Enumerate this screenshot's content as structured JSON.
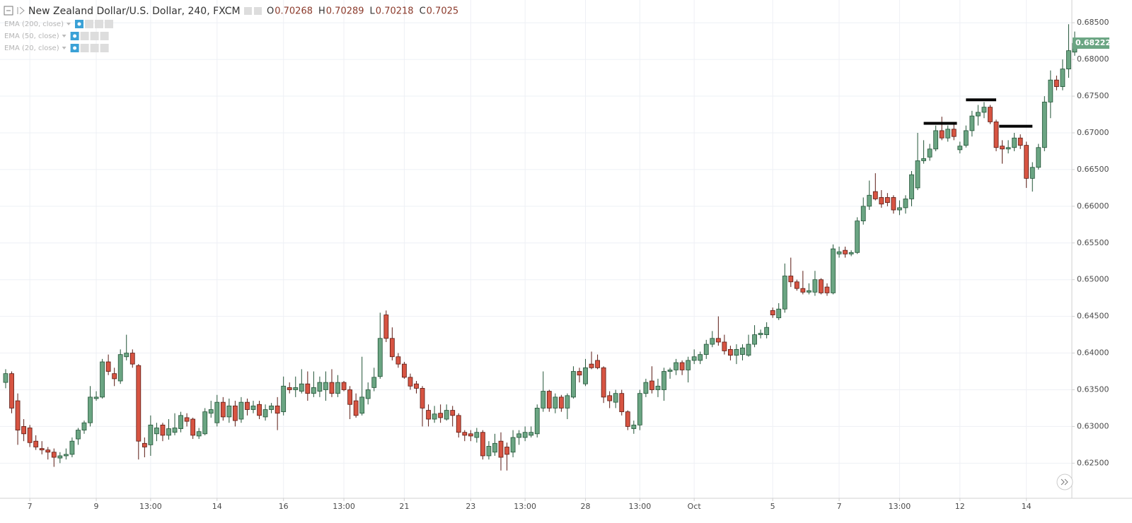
{
  "chart_data": {
    "type": "candlestick",
    "title": "New Zealand Dollar/U.S. Dollar, 240, FXCM",
    "legend_ohlc": [
      {
        "label": "O",
        "value": 0.70268
      },
      {
        "label": "H",
        "value": 0.70289
      },
      {
        "label": "L",
        "value": 0.70218
      },
      {
        "label": "C",
        "value": 0.7025
      }
    ],
    "indicators": [
      "EMA (200, close)",
      "EMA (50, close)",
      "EMA (20, close)"
    ],
    "up_color": "#6ba583",
    "down_color": "#d75442",
    "last_price": 0.68222,
    "ylim": [
      0.6207,
      0.6881
    ],
    "yticks": [
      {
        "value": 0.685,
        "label": "0.68500"
      },
      {
        "value": 0.68,
        "label": "0.68000"
      },
      {
        "value": 0.675,
        "label": "0.67500"
      },
      {
        "value": 0.67,
        "label": "0.67000"
      },
      {
        "value": 0.665,
        "label": "0.66500"
      },
      {
        "value": 0.66,
        "label": "0.66000"
      },
      {
        "value": 0.655,
        "label": "0.65500"
      },
      {
        "value": 0.65,
        "label": "0.65000"
      },
      {
        "value": 0.645,
        "label": "0.64500"
      },
      {
        "value": 0.64,
        "label": "0.64000"
      },
      {
        "value": 0.635,
        "label": "0.63500"
      },
      {
        "value": 0.63,
        "label": "0.63000"
      },
      {
        "value": 0.625,
        "label": "0.62500"
      }
    ],
    "xticks": [
      {
        "value": 4,
        "label": "7"
      },
      {
        "value": 15,
        "label": "9"
      },
      {
        "value": 24,
        "label": "13:00"
      },
      {
        "value": 35,
        "label": "14"
      },
      {
        "value": 46,
        "label": "16"
      },
      {
        "value": 56,
        "label": "13:00"
      },
      {
        "value": 66,
        "label": "21"
      },
      {
        "value": 77,
        "label": "23"
      },
      {
        "value": 86,
        "label": "13:00"
      },
      {
        "value": 96,
        "label": "28"
      },
      {
        "value": 105,
        "label": "13:00"
      },
      {
        "value": 114,
        "label": "Oct"
      },
      {
        "value": 127,
        "label": "5"
      },
      {
        "value": 138,
        "label": "7"
      },
      {
        "value": 148,
        "label": "13:00"
      },
      {
        "value": 158,
        "label": "12"
      },
      {
        "value": 169,
        "label": "14"
      }
    ],
    "grid": true,
    "levels": [
      {
        "value": 0.6713,
        "from": 152,
        "to": 157.5
      },
      {
        "value": 0.6745,
        "from": 159,
        "to": 164
      },
      {
        "value": 0.6709,
        "from": 164.5,
        "to": 170
      }
    ],
    "ohlc": [
      [
        0.636,
        0.6378,
        0.6352,
        0.6372
      ],
      [
        0.6372,
        0.6375,
        0.6318,
        0.6325
      ],
      [
        0.6335,
        0.6345,
        0.6275,
        0.6295
      ],
      [
        0.63,
        0.631,
        0.628,
        0.629
      ],
      [
        0.6298,
        0.6302,
        0.6272,
        0.6278
      ],
      [
        0.628,
        0.6288,
        0.6268,
        0.6272
      ],
      [
        0.627,
        0.628,
        0.6262,
        0.6268
      ],
      [
        0.6268,
        0.6272,
        0.6255,
        0.6265
      ],
      [
        0.6265,
        0.627,
        0.6245,
        0.6258
      ],
      [
        0.6257,
        0.6265,
        0.625,
        0.626
      ],
      [
        0.626,
        0.627,
        0.6255,
        0.6262
      ],
      [
        0.6262,
        0.6285,
        0.6258,
        0.628
      ],
      [
        0.6283,
        0.6298,
        0.6275,
        0.6295
      ],
      [
        0.6295,
        0.6308,
        0.629,
        0.6305
      ],
      [
        0.6305,
        0.6355,
        0.63,
        0.634
      ],
      [
        0.6338,
        0.6348,
        0.6335,
        0.634
      ],
      [
        0.634,
        0.6392,
        0.6338,
        0.6388
      ],
      [
        0.6388,
        0.6398,
        0.637,
        0.6375
      ],
      [
        0.6372,
        0.638,
        0.6355,
        0.6365
      ],
      [
        0.6362,
        0.6405,
        0.6358,
        0.6398
      ],
      [
        0.6395,
        0.6425,
        0.639,
        0.64
      ],
      [
        0.64,
        0.6405,
        0.638,
        0.6385
      ],
      [
        0.6383,
        0.6385,
        0.6255,
        0.628
      ],
      [
        0.6277,
        0.6285,
        0.6258,
        0.6272
      ],
      [
        0.6275,
        0.6315,
        0.626,
        0.6302
      ],
      [
        0.629,
        0.6305,
        0.628,
        0.6298
      ],
      [
        0.6302,
        0.6305,
        0.628,
        0.6288
      ],
      [
        0.6288,
        0.631,
        0.6282,
        0.6297
      ],
      [
        0.6292,
        0.6318,
        0.6288,
        0.6298
      ],
      [
        0.6297,
        0.632,
        0.6292,
        0.6315
      ],
      [
        0.6312,
        0.6318,
        0.63,
        0.6307
      ],
      [
        0.631,
        0.6312,
        0.6283,
        0.6288
      ],
      [
        0.6287,
        0.6298,
        0.6283,
        0.6293
      ],
      [
        0.629,
        0.6325,
        0.6288,
        0.632
      ],
      [
        0.6318,
        0.6335,
        0.6312,
        0.6323
      ],
      [
        0.6305,
        0.6343,
        0.63,
        0.6333
      ],
      [
        0.6333,
        0.634,
        0.6308,
        0.6313
      ],
      [
        0.6313,
        0.6338,
        0.6305,
        0.6328
      ],
      [
        0.6328,
        0.6335,
        0.63,
        0.6308
      ],
      [
        0.631,
        0.634,
        0.6305,
        0.6333
      ],
      [
        0.6333,
        0.6338,
        0.6315,
        0.6323
      ],
      [
        0.6323,
        0.6335,
        0.6318,
        0.6328
      ],
      [
        0.633,
        0.6335,
        0.631,
        0.6315
      ],
      [
        0.6313,
        0.633,
        0.6308,
        0.6323
      ],
      [
        0.6323,
        0.6332,
        0.6318,
        0.6328
      ],
      [
        0.6328,
        0.634,
        0.6295,
        0.6318
      ],
      [
        0.632,
        0.6368,
        0.6315,
        0.6355
      ],
      [
        0.6353,
        0.636,
        0.6345,
        0.635
      ],
      [
        0.635,
        0.6368,
        0.634,
        0.6353
      ],
      [
        0.6348,
        0.6378,
        0.6345,
        0.6358
      ],
      [
        0.6358,
        0.6375,
        0.6335,
        0.6345
      ],
      [
        0.6345,
        0.6375,
        0.634,
        0.6353
      ],
      [
        0.6348,
        0.6368,
        0.634,
        0.636
      ],
      [
        0.635,
        0.6375,
        0.6335,
        0.636
      ],
      [
        0.636,
        0.6378,
        0.634,
        0.6345
      ],
      [
        0.6345,
        0.637,
        0.634,
        0.636
      ],
      [
        0.636,
        0.6362,
        0.6348,
        0.635
      ],
      [
        0.635,
        0.6355,
        0.631,
        0.633
      ],
      [
        0.6335,
        0.6345,
        0.6312,
        0.6315
      ],
      [
        0.6318,
        0.6395,
        0.6315,
        0.634
      ],
      [
        0.6338,
        0.636,
        0.633,
        0.635
      ],
      [
        0.6353,
        0.638,
        0.6348,
        0.6367
      ],
      [
        0.6368,
        0.6455,
        0.6365,
        0.642
      ],
      [
        0.6452,
        0.6458,
        0.6415,
        0.642
      ],
      [
        0.642,
        0.6435,
        0.639,
        0.6395
      ],
      [
        0.6395,
        0.64,
        0.638,
        0.6385
      ],
      [
        0.6385,
        0.6388,
        0.6365,
        0.6367
      ],
      [
        0.6367,
        0.6372,
        0.635,
        0.6355
      ],
      [
        0.6358,
        0.6362,
        0.6345,
        0.6352
      ],
      [
        0.6352,
        0.6355,
        0.63,
        0.6325
      ],
      [
        0.6322,
        0.633,
        0.63,
        0.631
      ],
      [
        0.631,
        0.6328,
        0.6305,
        0.6317
      ],
      [
        0.6318,
        0.633,
        0.6305,
        0.6312
      ],
      [
        0.631,
        0.633,
        0.6308,
        0.6322
      ],
      [
        0.6322,
        0.6328,
        0.63,
        0.6315
      ],
      [
        0.6315,
        0.6318,
        0.6285,
        0.6292
      ],
      [
        0.6292,
        0.6295,
        0.628,
        0.6288
      ],
      [
        0.629,
        0.6295,
        0.628,
        0.6287
      ],
      [
        0.6285,
        0.6298,
        0.6278,
        0.6292
      ],
      [
        0.6292,
        0.6295,
        0.6255,
        0.626
      ],
      [
        0.626,
        0.628,
        0.6255,
        0.6273
      ],
      [
        0.6265,
        0.629,
        0.626,
        0.6277
      ],
      [
        0.628,
        0.6292,
        0.624,
        0.6258
      ],
      [
        0.6272,
        0.6278,
        0.624,
        0.6262
      ],
      [
        0.6265,
        0.6295,
        0.6258,
        0.6285
      ],
      [
        0.6285,
        0.6295,
        0.6275,
        0.629
      ],
      [
        0.6285,
        0.63,
        0.628,
        0.6292
      ],
      [
        0.6288,
        0.63,
        0.6285,
        0.6292
      ],
      [
        0.629,
        0.633,
        0.6285,
        0.6325
      ],
      [
        0.6325,
        0.6375,
        0.632,
        0.6348
      ],
      [
        0.6348,
        0.635,
        0.632,
        0.6325
      ],
      [
        0.6325,
        0.6345,
        0.6318,
        0.634
      ],
      [
        0.634,
        0.6343,
        0.632,
        0.6325
      ],
      [
        0.6325,
        0.6345,
        0.631,
        0.6342
      ],
      [
        0.634,
        0.6382,
        0.6338,
        0.6375
      ],
      [
        0.6375,
        0.638,
        0.636,
        0.637
      ],
      [
        0.6358,
        0.6392,
        0.6355,
        0.638
      ],
      [
        0.6385,
        0.6402,
        0.6378,
        0.638
      ],
      [
        0.639,
        0.6398,
        0.6378,
        0.638
      ],
      [
        0.638,
        0.6382,
        0.6332,
        0.634
      ],
      [
        0.6342,
        0.6348,
        0.6325,
        0.6335
      ],
      [
        0.6333,
        0.635,
        0.6325,
        0.6345
      ],
      [
        0.6345,
        0.635,
        0.6315,
        0.632
      ],
      [
        0.632,
        0.6322,
        0.6295,
        0.63
      ],
      [
        0.6297,
        0.6308,
        0.629,
        0.6302
      ],
      [
        0.6302,
        0.635,
        0.6295,
        0.6345
      ],
      [
        0.6345,
        0.6365,
        0.634,
        0.636
      ],
      [
        0.6362,
        0.6382,
        0.6345,
        0.635
      ],
      [
        0.635,
        0.6365,
        0.634,
        0.6355
      ],
      [
        0.635,
        0.638,
        0.6335,
        0.6375
      ],
      [
        0.6375,
        0.638,
        0.6365,
        0.6377
      ],
      [
        0.6377,
        0.6392,
        0.637,
        0.6387
      ],
      [
        0.6387,
        0.639,
        0.637,
        0.6377
      ],
      [
        0.6377,
        0.6395,
        0.636,
        0.639
      ],
      [
        0.639,
        0.6405,
        0.6385,
        0.6395
      ],
      [
        0.639,
        0.6402,
        0.6385,
        0.6398
      ],
      [
        0.6398,
        0.6418,
        0.6392,
        0.6412
      ],
      [
        0.6412,
        0.643,
        0.6408,
        0.642
      ],
      [
        0.642,
        0.645,
        0.641,
        0.6415
      ],
      [
        0.6415,
        0.6425,
        0.6398,
        0.6403
      ],
      [
        0.6405,
        0.641,
        0.639,
        0.6397
      ],
      [
        0.6397,
        0.6412,
        0.6385,
        0.6405
      ],
      [
        0.6398,
        0.6412,
        0.639,
        0.6407
      ],
      [
        0.6397,
        0.6425,
        0.6395,
        0.6412
      ],
      [
        0.6412,
        0.6438,
        0.6408,
        0.6425
      ],
      [
        0.6425,
        0.6432,
        0.642,
        0.6427
      ],
      [
        0.6425,
        0.6442,
        0.642,
        0.6435
      ],
      [
        0.6458,
        0.6462,
        0.6448,
        0.6452
      ],
      [
        0.6448,
        0.6468,
        0.6445,
        0.646
      ],
      [
        0.646,
        0.6522,
        0.6455,
        0.6505
      ],
      [
        0.6505,
        0.653,
        0.649,
        0.6497
      ],
      [
        0.6497,
        0.65,
        0.6485,
        0.6488
      ],
      [
        0.6488,
        0.6512,
        0.648,
        0.6483
      ],
      [
        0.6483,
        0.6495,
        0.648,
        0.6485
      ],
      [
        0.6483,
        0.6512,
        0.6478,
        0.65
      ],
      [
        0.65,
        0.6502,
        0.648,
        0.6482
      ],
      [
        0.649,
        0.6495,
        0.6478,
        0.6482
      ],
      [
        0.6482,
        0.6548,
        0.648,
        0.6542
      ],
      [
        0.6535,
        0.6545,
        0.653,
        0.6538
      ],
      [
        0.654,
        0.6545,
        0.653,
        0.6535
      ],
      [
        0.6535,
        0.654,
        0.6532,
        0.6537
      ],
      [
        0.6537,
        0.6585,
        0.6535,
        0.658
      ],
      [
        0.658,
        0.6612,
        0.6575,
        0.66
      ],
      [
        0.66,
        0.6635,
        0.6595,
        0.6615
      ],
      [
        0.662,
        0.6645,
        0.6608,
        0.661
      ],
      [
        0.6612,
        0.6622,
        0.6598,
        0.6603
      ],
      [
        0.6612,
        0.6618,
        0.66,
        0.6605
      ],
      [
        0.6612,
        0.6615,
        0.659,
        0.6595
      ],
      [
        0.6595,
        0.6608,
        0.6588,
        0.6598
      ],
      [
        0.6598,
        0.6615,
        0.659,
        0.661
      ],
      [
        0.661,
        0.6648,
        0.66,
        0.6643
      ],
      [
        0.6625,
        0.67,
        0.6622,
        0.6662
      ],
      [
        0.6662,
        0.669,
        0.6658,
        0.6665
      ],
      [
        0.6667,
        0.6685,
        0.6662,
        0.6678
      ],
      [
        0.6678,
        0.671,
        0.6675,
        0.6703
      ],
      [
        0.6703,
        0.6722,
        0.669,
        0.6693
      ],
      [
        0.6693,
        0.671,
        0.6688,
        0.6705
      ],
      [
        0.6705,
        0.6712,
        0.669,
        0.6695
      ],
      [
        0.6677,
        0.6688,
        0.6672,
        0.6682
      ],
      [
        0.6683,
        0.671,
        0.668,
        0.6703
      ],
      [
        0.6703,
        0.673,
        0.6695,
        0.6723
      ],
      [
        0.6723,
        0.6738,
        0.671,
        0.6728
      ],
      [
        0.6728,
        0.6742,
        0.672,
        0.6735
      ],
      [
        0.6735,
        0.6738,
        0.6712,
        0.6715
      ],
      [
        0.6715,
        0.6718,
        0.6675,
        0.668
      ],
      [
        0.6682,
        0.669,
        0.6658,
        0.6678
      ],
      [
        0.6678,
        0.669,
        0.6672,
        0.668
      ],
      [
        0.668,
        0.67,
        0.6675,
        0.6693
      ],
      [
        0.6693,
        0.6698,
        0.6678,
        0.6683
      ],
      [
        0.6683,
        0.6688,
        0.6625,
        0.6638
      ],
      [
        0.6638,
        0.666,
        0.662,
        0.6653
      ],
      [
        0.6653,
        0.6685,
        0.665,
        0.668
      ],
      [
        0.668,
        0.675,
        0.6675,
        0.6742
      ],
      [
        0.6742,
        0.6785,
        0.672,
        0.6772
      ],
      [
        0.6772,
        0.6778,
        0.6758,
        0.6763
      ],
      [
        0.6763,
        0.68,
        0.6758,
        0.6787
      ],
      [
        0.6787,
        0.6848,
        0.6775,
        0.6812
      ],
      [
        0.681,
        0.6838,
        0.6805,
        0.6822
      ]
    ]
  }
}
